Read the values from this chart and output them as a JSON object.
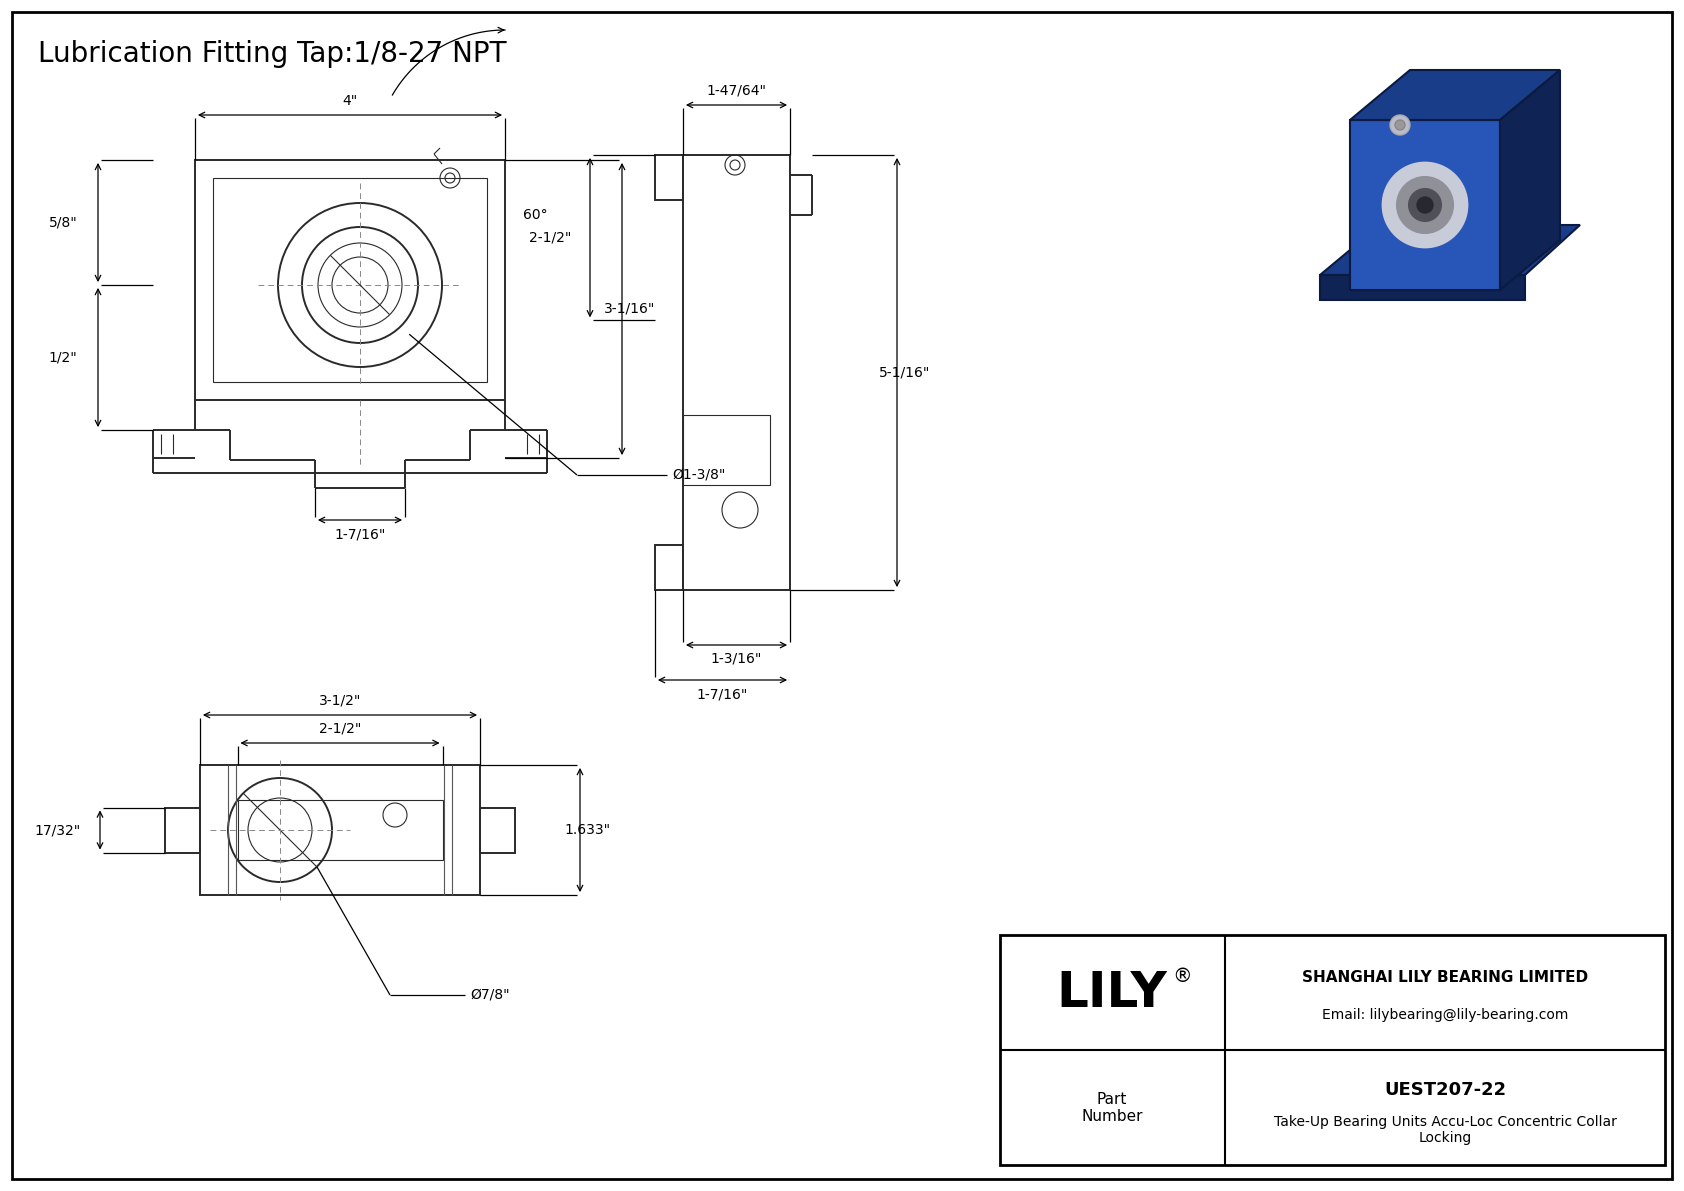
{
  "title": "Lubrication Fitting Tap:1/8-27 NPT",
  "bg_color": "#ffffff",
  "line_color": "#2a2a2a",
  "dim_fontsize": 10,
  "title_fontsize": 20,
  "angle_label": "60°",
  "title_block": {
    "logo_text": "LILY",
    "logo_sup": "®",
    "company": "SHANGHAI LILY BEARING LIMITED",
    "email": "Email: lilybearing@lily-bearing.com",
    "part_label": "Part\nNumber",
    "part_number": "UEST207-22",
    "description": "Take-Up Bearing Units Accu-Loc Concentric Collar\nLocking"
  }
}
